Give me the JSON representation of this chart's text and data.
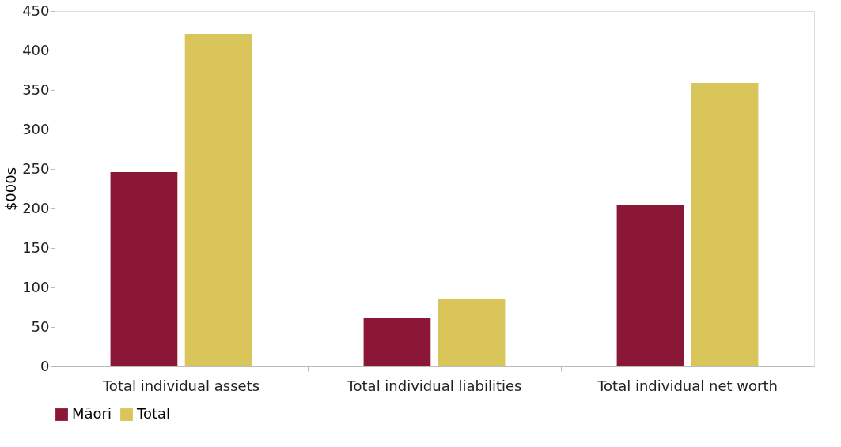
{
  "chart_data": {
    "type": "bar",
    "ylabel": "$000s",
    "categories": [
      "Total individual assets",
      "Total individual liabilities",
      "Total individual net worth"
    ],
    "series": [
      {
        "name": "Māori",
        "color": "#8b1736",
        "values": [
          246,
          61,
          204
        ]
      },
      {
        "name": "Total",
        "color": "#d9c55a",
        "values": [
          421,
          86,
          359
        ]
      }
    ],
    "ylim": [
      0,
      450
    ],
    "yticks": [
      0,
      50,
      100,
      150,
      200,
      250,
      300,
      350,
      400,
      450
    ],
    "grid": false,
    "legend": "bottom"
  }
}
